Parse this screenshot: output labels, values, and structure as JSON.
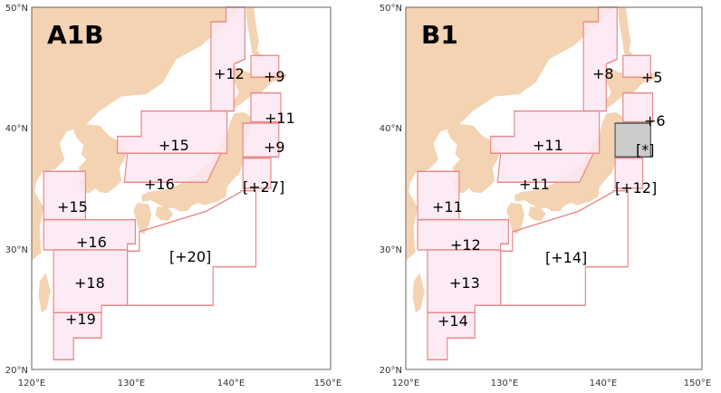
{
  "colors": {
    "land": "#f3d3b1",
    "sea": "#ffffff",
    "region_fill": "#fbe8f2",
    "region_stroke": "#e88a8a",
    "frame": "#666666",
    "na_fill": "#cccccc",
    "na_stroke": "#555555"
  },
  "axis": {
    "lon_ticks": [
      "120°E",
      "130°E",
      "140°E",
      "150°E"
    ],
    "lat_ticks": [
      "20°N",
      "30°N",
      "40°N",
      "50°N"
    ]
  },
  "panels": [
    {
      "title": "A1B",
      "regions": [
        {
          "id": "okhotsk-west",
          "label": "+12"
        },
        {
          "id": "okhotsk-east",
          "label": "+9"
        },
        {
          "id": "sanriku",
          "label": "+11"
        },
        {
          "id": "tohoku-offshore",
          "label": "+9"
        },
        {
          "id": "japan-sea-north",
          "label": "+15"
        },
        {
          "id": "japan-sea-south",
          "label": "+16"
        },
        {
          "id": "kanto-offshore",
          "label": "[+27]"
        },
        {
          "id": "yellow-sea",
          "label": "+15"
        },
        {
          "id": "east-china-sea-north",
          "label": "+16"
        },
        {
          "id": "pacific-south",
          "label": "[+20]"
        },
        {
          "id": "east-china-sea-south",
          "label": "+18"
        },
        {
          "id": "taiwan",
          "label": "+19"
        }
      ]
    },
    {
      "title": "B1",
      "regions": [
        {
          "id": "okhotsk-west",
          "label": "+8"
        },
        {
          "id": "okhotsk-east",
          "label": "+5"
        },
        {
          "id": "sanriku",
          "label": "+6"
        },
        {
          "id": "tohoku-offshore",
          "label": "[*]"
        },
        {
          "id": "japan-sea-north",
          "label": "+11"
        },
        {
          "id": "japan-sea-south",
          "label": "+11"
        },
        {
          "id": "kanto-offshore",
          "label": "[+12]"
        },
        {
          "id": "yellow-sea",
          "label": "+11"
        },
        {
          "id": "east-china-sea-north",
          "label": "+12"
        },
        {
          "id": "pacific-south",
          "label": "[+14]"
        },
        {
          "id": "east-china-sea-south",
          "label": "+13"
        },
        {
          "id": "taiwan",
          "label": "+14"
        }
      ]
    }
  ]
}
